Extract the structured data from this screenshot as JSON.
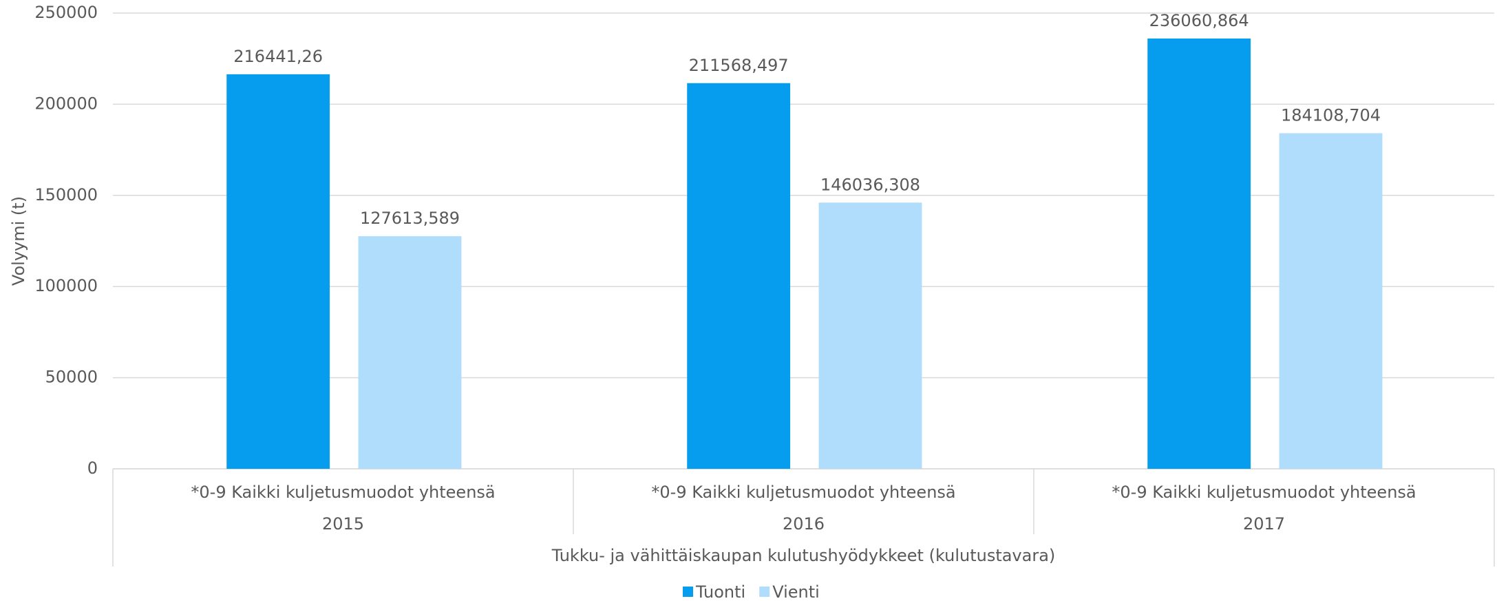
{
  "chart_data": {
    "type": "bar",
    "y_label": "Volyymi (t)",
    "categories": [
      "2015",
      "2016",
      "2017"
    ],
    "category_sublabels": [
      "*0-9 Kaikki kuljetusmuodot yhteensä",
      "*0-9 Kaikki kuljetusmuodot yhteensä",
      "*0-9 Kaikki kuljetusmuodot yhteensä"
    ],
    "group_label": "Tukku- ja vähittäiskaupan kulutushyödykkeet (kulutustavara)",
    "series": [
      {
        "name": "Tuonti",
        "color": "#069dee",
        "values": [
          216441.26,
          211568.497,
          236060.864
        ],
        "value_labels": [
          "216441,26",
          "211568,497",
          "236060,864"
        ]
      },
      {
        "name": "Vienti",
        "color": "#b0ddfb",
        "values": [
          127613.589,
          146036.308,
          184108.704
        ],
        "value_labels": [
          "127613,589",
          "146036,308",
          "184108,704"
        ]
      }
    ],
    "ylim": [
      0,
      250000
    ],
    "yticks": [
      0,
      50000,
      100000,
      150000,
      200000,
      250000
    ],
    "grid": true,
    "legend": "bottom"
  }
}
